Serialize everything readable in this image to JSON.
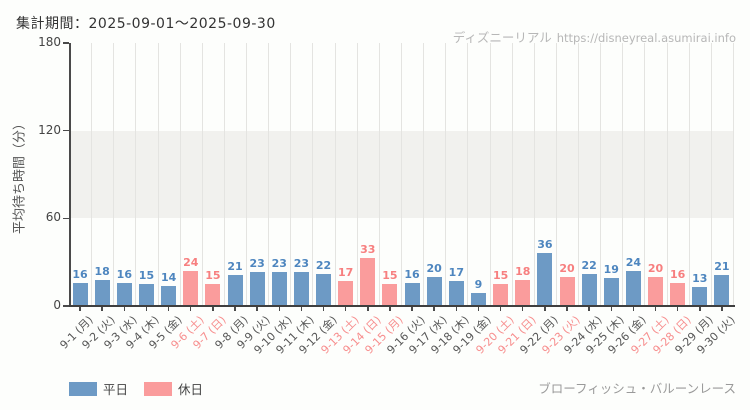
{
  "header": {
    "title": "集計期間：2025-09-01～2025-09-30",
    "watermark_brand": "ディズニーリアル",
    "watermark_url": "https://disneyreal.asumirai.info"
  },
  "chart_data": {
    "type": "bar",
    "title": "集計期間：2025-09-01～2025-09-30",
    "xlabel": "",
    "ylabel": "平均待ち時間（分）",
    "ylim": [
      0,
      180
    ],
    "yticks": [
      0,
      60,
      120,
      180
    ],
    "grid": "vertical-category-boundaries",
    "shaded_band": {
      "from": 60,
      "to": 120,
      "color": "#f1f1ee"
    },
    "categories": [
      "9-1 (月)",
      "9-2 (火)",
      "9-3 (水)",
      "9-4 (木)",
      "9-5 (金)",
      "9-6 (土)",
      "9-7 (日)",
      "9-8 (月)",
      "9-9 (火)",
      "9-10 (水)",
      "9-11 (木)",
      "9-12 (金)",
      "9-13 (土)",
      "9-14 (日)",
      "9-15 (月)",
      "9-16 (火)",
      "9-17 (水)",
      "9-18 (木)",
      "9-19 (金)",
      "9-20 (土)",
      "9-21 (日)",
      "9-22 (月)",
      "9-23 (火)",
      "9-24 (水)",
      "9-25 (木)",
      "9-26 (金)",
      "9-27 (土)",
      "9-28 (日)",
      "9-29 (月)",
      "9-30 (火)"
    ],
    "values": [
      16,
      18,
      16,
      15,
      14,
      24,
      15,
      21,
      23,
      23,
      23,
      22,
      17,
      33,
      15,
      16,
      20,
      17,
      9,
      15,
      18,
      36,
      20,
      22,
      19,
      24,
      20,
      16,
      13,
      21
    ],
    "day_types": [
      "w",
      "w",
      "w",
      "w",
      "w",
      "h",
      "h",
      "w",
      "w",
      "w",
      "w",
      "w",
      "h",
      "h",
      "h",
      "w",
      "w",
      "w",
      "w",
      "h",
      "h",
      "w",
      "h",
      "w",
      "w",
      "w",
      "h",
      "h",
      "w",
      "w"
    ],
    "colors": {
      "weekday_bar": "#6d9ac5",
      "holiday_bar": "#fa9c9c",
      "weekday_value_label": "#4e86bf",
      "holiday_value_label": "#f77f7f",
      "weekday_tick_label": "#555555",
      "holiday_tick_label": "#f78d8d"
    },
    "legend_position": "bottom-left"
  },
  "legend": {
    "items": [
      {
        "label": "平日",
        "color": "#6d9ac5"
      },
      {
        "label": "休日",
        "color": "#fa9c9c"
      }
    ]
  },
  "footer": {
    "attraction": "ブローフィッシュ・バルーンレース"
  }
}
